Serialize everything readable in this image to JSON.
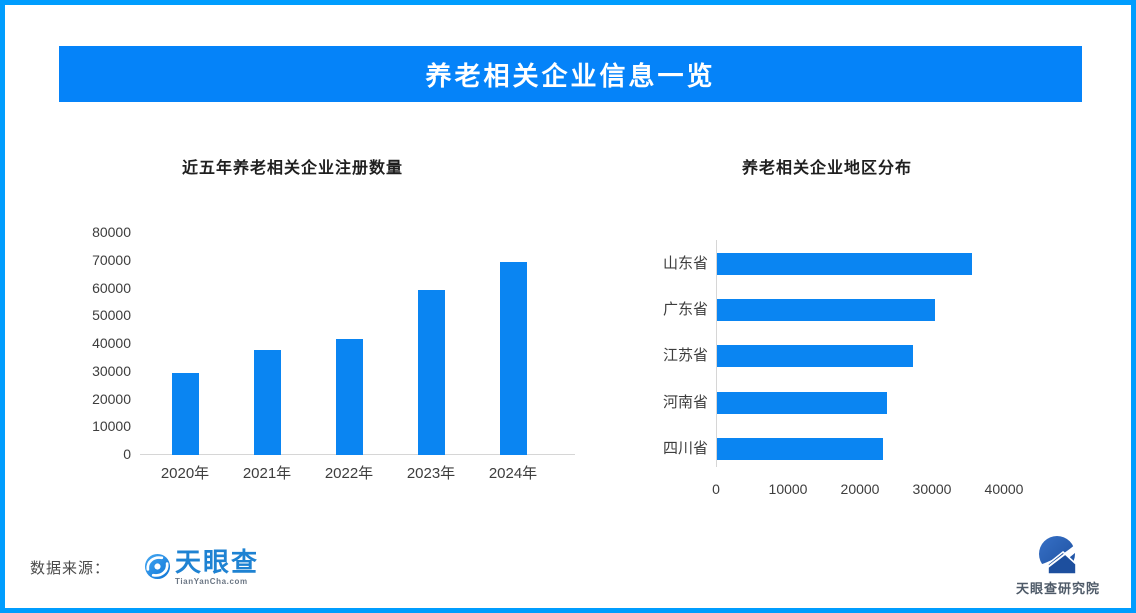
{
  "banner": {
    "title": "养老相关企业信息一览",
    "bg_color": "#0583F9",
    "text_color": "#FFFFFF"
  },
  "frame": {
    "border_color": "#009DFE",
    "background": "#FFFFFF"
  },
  "chart_data": [
    {
      "type": "bar",
      "orientation": "vertical",
      "title": "近五年养老相关企业注册数量",
      "categories": [
        "2020年",
        "2021年",
        "2022年",
        "2023年",
        "2024年"
      ],
      "values": [
        29600,
        37700,
        41700,
        59400,
        69500
      ],
      "ylim": [
        0,
        80000
      ],
      "yticks": [
        0,
        10000,
        20000,
        30000,
        40000,
        50000,
        60000,
        70000,
        80000
      ],
      "bar_color": "#0A85F2",
      "grid": false,
      "legend": "none"
    },
    {
      "type": "bar",
      "orientation": "horizontal",
      "title": "养老相关企业地区分布",
      "categories": [
        "山东省",
        "广东省",
        "江苏省",
        "河南省",
        "四川省"
      ],
      "values": [
        35400,
        30300,
        27200,
        23600,
        23000
      ],
      "xlim": [
        0,
        45000
      ],
      "xticks": [
        0,
        10000,
        20000,
        30000,
        40000
      ],
      "bar_color": "#0A85F2",
      "grid": false,
      "legend": "none"
    }
  ],
  "footer": {
    "source_label": "数据来源：",
    "logo": {
      "name": "天眼查",
      "sub": "TianYanCha.com",
      "brand_color": "#1E82D2"
    },
    "institute": {
      "name": "天眼查研究院",
      "text_color": "#4E5A68"
    }
  }
}
